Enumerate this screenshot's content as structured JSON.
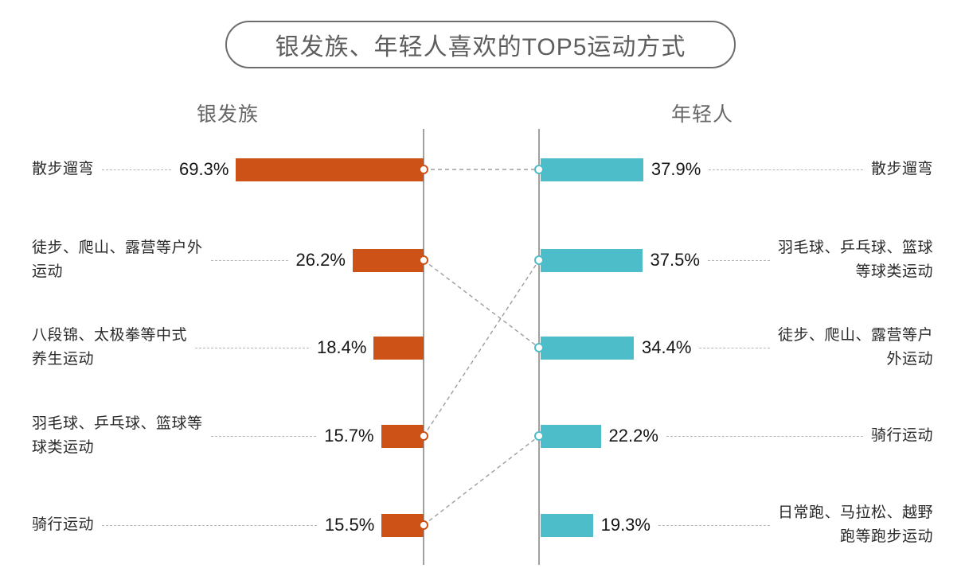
{
  "title": "银发族、年轻人喜欢的TOP5运动方式",
  "colors": {
    "silver_series": "#cd5218",
    "young_series": "#4dbdc9",
    "axis_line": "#a1a1a1",
    "leader_dash": "#b6b6b6",
    "connector_dash": "#9d9d9d",
    "title_text": "#5e5e5e",
    "header_text": "#666666"
  },
  "chart_data": {
    "type": "bar",
    "variant": "butterfly-horizontal",
    "title": "银发族、年轻人喜欢的TOP5运动方式",
    "unit": "%",
    "legend_position": "column-headers",
    "grid": false,
    "series": [
      {
        "name": "银发族",
        "side": "left",
        "color": "#cd5218",
        "items": [
          {
            "label": "散步遛弯",
            "value": 69.3,
            "value_label": "69.3%"
          },
          {
            "label": "徒步、爬山、露营等户外\n运动",
            "value": 26.2,
            "value_label": "26.2%"
          },
          {
            "label": "八段锦、太极拳等中式\n养生运动",
            "value": 18.4,
            "value_label": "18.4%"
          },
          {
            "label": "羽毛球、乒乓球、篮球等\n球类运动",
            "value": 15.7,
            "value_label": "15.7%"
          },
          {
            "label": "骑行运动",
            "value": 15.5,
            "value_label": "15.5%"
          }
        ]
      },
      {
        "name": "年轻人",
        "side": "right",
        "color": "#4dbdc9",
        "items": [
          {
            "label": "散步遛弯",
            "value": 37.9,
            "value_label": "37.9%"
          },
          {
            "label": "羽毛球、乒乓球、篮球\n等球类运动",
            "value": 37.5,
            "value_label": "37.5%"
          },
          {
            "label": "徒步、爬山、露营等户\n外运动",
            "value": 34.4,
            "value_label": "34.4%"
          },
          {
            "label": "骑行运动",
            "value": 22.2,
            "value_label": "22.2%"
          },
          {
            "label": "日常跑、马拉松、越野\n跑等跑步运动",
            "value": 19.3,
            "value_label": "19.3%"
          }
        ]
      }
    ],
    "connections": [
      {
        "left_index": 0,
        "right_index": 0,
        "category": "散步遛弯"
      },
      {
        "left_index": 1,
        "right_index": 2,
        "category": "徒步、爬山、露营等户外运动"
      },
      {
        "left_index": 3,
        "right_index": 1,
        "category": "羽毛球、乒乓球、篮球等球类运动"
      },
      {
        "left_index": 4,
        "right_index": 3,
        "category": "骑行运动"
      }
    ]
  }
}
